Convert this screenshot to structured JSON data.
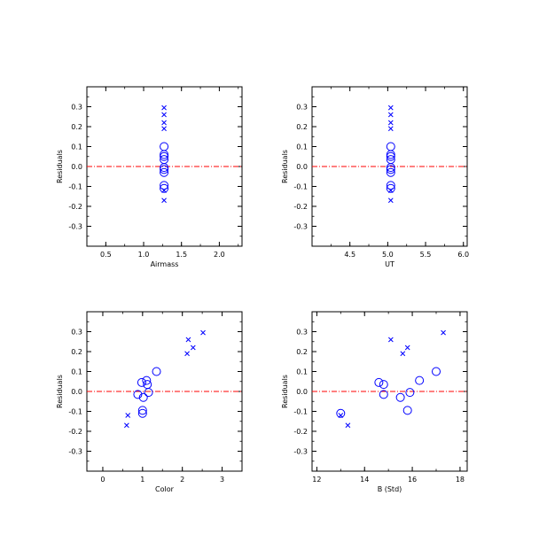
{
  "colors": {
    "marker": "#0000ff",
    "zero_line": "#ff0000",
    "axis": "#000000"
  },
  "chart_data": [
    {
      "type": "scatter",
      "xlabel": "Airmass",
      "ylabel": "Residuals",
      "xlim": [
        0.25,
        2.3
      ],
      "ylim": [
        -0.4,
        0.4
      ],
      "xticks": [
        0.5,
        1.0,
        1.5,
        2.0
      ],
      "xtick_labels": [
        "0.5",
        "1.0",
        "1.5",
        "2.0"
      ],
      "yticks": [
        -0.3,
        -0.2,
        -0.1,
        0.0,
        0.1,
        0.2,
        0.3
      ],
      "ytick_labels": [
        "-0.3",
        "-0.2",
        "-0.1",
        "0.0",
        "0.1",
        "0.2",
        "0.3"
      ],
      "reference_line_y": 0.0,
      "series": [
        {
          "marker": "circle",
          "points": [
            [
              1.27,
              0.1
            ],
            [
              1.27,
              0.06
            ],
            [
              1.27,
              0.05
            ],
            [
              1.27,
              0.035
            ],
            [
              1.27,
              -0.005
            ],
            [
              1.27,
              -0.015
            ],
            [
              1.27,
              -0.03
            ],
            [
              1.27,
              -0.095
            ],
            [
              1.27,
              -0.11
            ]
          ]
        },
        {
          "marker": "cross",
          "points": [
            [
              1.27,
              0.295
            ],
            [
              1.27,
              0.26
            ],
            [
              1.27,
              0.22
            ],
            [
              1.27,
              0.19
            ],
            [
              1.27,
              -0.12
            ],
            [
              1.27,
              -0.17
            ]
          ]
        }
      ]
    },
    {
      "type": "scatter",
      "xlabel": "UT",
      "ylabel": "Residuals",
      "xlim": [
        4.0,
        6.05
      ],
      "ylim": [
        -0.4,
        0.4
      ],
      "xticks": [
        4.5,
        5.0,
        5.5,
        6.0
      ],
      "xtick_labels": [
        "4.5",
        "5.0",
        "5.5",
        "6.0"
      ],
      "yticks": [
        -0.3,
        -0.2,
        -0.1,
        0.0,
        0.1,
        0.2,
        0.3
      ],
      "ytick_labels": [
        "-0.3",
        "-0.2",
        "-0.1",
        "0.0",
        "0.1",
        "0.2",
        "0.3"
      ],
      "reference_line_y": 0.0,
      "series": [
        {
          "marker": "circle",
          "points": [
            [
              5.04,
              0.1
            ],
            [
              5.04,
              0.06
            ],
            [
              5.04,
              0.05
            ],
            [
              5.04,
              0.035
            ],
            [
              5.04,
              -0.005
            ],
            [
              5.04,
              -0.015
            ],
            [
              5.04,
              -0.03
            ],
            [
              5.04,
              -0.095
            ],
            [
              5.04,
              -0.11
            ]
          ]
        },
        {
          "marker": "cross",
          "points": [
            [
              5.04,
              0.295
            ],
            [
              5.04,
              0.26
            ],
            [
              5.04,
              0.22
            ],
            [
              5.04,
              0.19
            ],
            [
              5.04,
              -0.12
            ],
            [
              5.04,
              -0.17
            ]
          ]
        }
      ]
    },
    {
      "type": "scatter",
      "xlabel": "Color",
      "ylabel": "Residuals",
      "xlim": [
        -0.4,
        3.5
      ],
      "ylim": [
        -0.4,
        0.4
      ],
      "xticks": [
        0,
        1,
        2,
        3
      ],
      "xtick_labels": [
        "0",
        "1",
        "2",
        "3"
      ],
      "yticks": [
        -0.3,
        -0.2,
        -0.1,
        0.0,
        0.1,
        0.2,
        0.3
      ],
      "ytick_labels": [
        "-0.3",
        "-0.2",
        "-0.1",
        "0.0",
        "0.1",
        "0.2",
        "0.3"
      ],
      "reference_line_y": 0.0,
      "series": [
        {
          "marker": "circle",
          "points": [
            [
              1.35,
              0.1
            ],
            [
              1.1,
              0.055
            ],
            [
              0.98,
              0.045
            ],
            [
              1.12,
              0.035
            ],
            [
              1.15,
              -0.005
            ],
            [
              0.88,
              -0.015
            ],
            [
              1.02,
              -0.03
            ],
            [
              1.0,
              -0.095
            ],
            [
              1.0,
              -0.11
            ]
          ]
        },
        {
          "marker": "cross",
          "points": [
            [
              2.52,
              0.295
            ],
            [
              2.15,
              0.26
            ],
            [
              2.27,
              0.22
            ],
            [
              2.12,
              0.19
            ],
            [
              0.63,
              -0.12
            ],
            [
              0.6,
              -0.17
            ]
          ]
        }
      ]
    },
    {
      "type": "scatter",
      "xlabel": "B (Std)",
      "ylabel": "Residuals",
      "xlim": [
        11.8,
        18.3
      ],
      "ylim": [
        -0.4,
        0.4
      ],
      "xticks": [
        12,
        14,
        16,
        18
      ],
      "xtick_labels": [
        "12",
        "14",
        "16",
        "18"
      ],
      "yticks": [
        -0.3,
        -0.2,
        -0.1,
        0.0,
        0.1,
        0.2,
        0.3
      ],
      "ytick_labels": [
        "-0.3",
        "-0.2",
        "-0.1",
        "0.0",
        "0.1",
        "0.2",
        "0.3"
      ],
      "reference_line_y": 0.0,
      "series": [
        {
          "marker": "circle",
          "points": [
            [
              17.0,
              0.1
            ],
            [
              16.3,
              0.055
            ],
            [
              14.6,
              0.045
            ],
            [
              14.8,
              0.035
            ],
            [
              15.9,
              -0.005
            ],
            [
              14.8,
              -0.015
            ],
            [
              15.5,
              -0.03
            ],
            [
              15.8,
              -0.095
            ],
            [
              13.0,
              -0.11
            ]
          ]
        },
        {
          "marker": "cross",
          "points": [
            [
              17.3,
              0.295
            ],
            [
              15.1,
              0.26
            ],
            [
              15.8,
              0.22
            ],
            [
              15.6,
              0.19
            ],
            [
              13.0,
              -0.12
            ],
            [
              13.3,
              -0.17
            ]
          ]
        }
      ]
    }
  ]
}
